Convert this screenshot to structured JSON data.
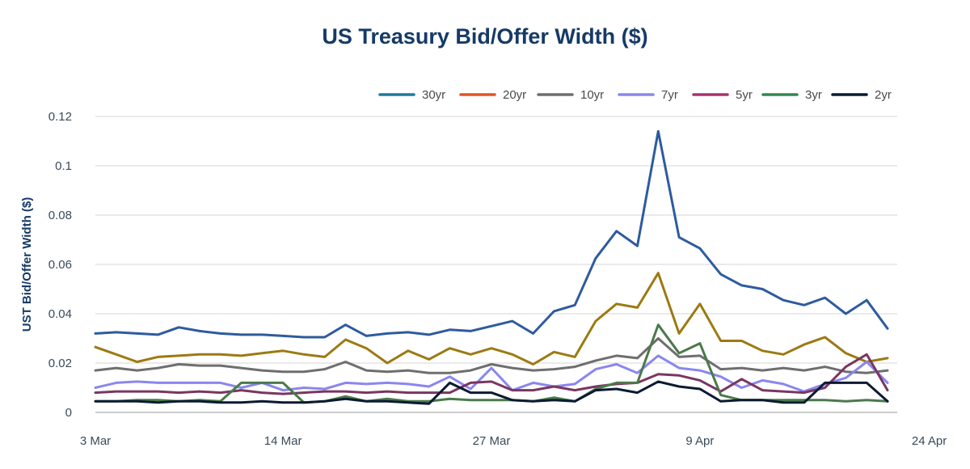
{
  "chart_data": {
    "type": "line",
    "title": "US Treasury Bid/Offer Width ($)",
    "ylabel": "UST Bid/Offer Width ($)",
    "xlabel": "",
    "ylim": [
      0,
      0.12
    ],
    "y_ticks": [
      "0",
      "0.02",
      "0.04",
      "0.06",
      "0.08",
      "0.1",
      "0.12"
    ],
    "y_tick_values": [
      0,
      0.02,
      0.04,
      0.06,
      0.08,
      0.1,
      0.12
    ],
    "x_tick_labels": [
      "3 Mar",
      "14 Mar",
      "27 Mar",
      "9 Apr",
      "24 Apr"
    ],
    "x_tick_indices": [
      0,
      9,
      19,
      29,
      40
    ],
    "grid": true,
    "legend_position": "top",
    "series": [
      {
        "name": "30yr",
        "color": "#1a7a9e",
        "line_color": "#2e5b9e",
        "values": [
          0.032,
          0.0325,
          0.032,
          0.0315,
          0.0345,
          0.033,
          0.032,
          0.0315,
          0.0315,
          0.031,
          0.0305,
          0.0305,
          0.0355,
          0.031,
          0.032,
          0.0325,
          0.0315,
          0.0335,
          0.033,
          0.035,
          0.037,
          0.032,
          0.041,
          0.0435,
          0.0625,
          0.0735,
          0.0675,
          0.114,
          0.071,
          0.0665,
          0.056,
          0.0515,
          0.05,
          0.0455,
          0.0435,
          0.0465,
          0.04,
          0.0455,
          0.034
        ]
      },
      {
        "name": "20yr",
        "color": "#e0561f",
        "line_color": "#9c7a12",
        "values": [
          0.0265,
          0.0235,
          0.0205,
          0.0225,
          0.023,
          0.0235,
          0.0235,
          0.023,
          0.024,
          0.025,
          0.0235,
          0.0225,
          0.0295,
          0.026,
          0.02,
          0.025,
          0.0215,
          0.026,
          0.0235,
          0.026,
          0.0235,
          0.0195,
          0.0245,
          0.0225,
          0.037,
          0.044,
          0.0425,
          0.0565,
          0.032,
          0.044,
          0.029,
          0.029,
          0.025,
          0.0235,
          0.0275,
          0.0305,
          0.024,
          0.0205,
          0.022
        ]
      },
      {
        "name": "10yr",
        "color": "#6e6e6e",
        "line_color": "#6e6e6e",
        "values": [
          0.017,
          0.018,
          0.017,
          0.018,
          0.0195,
          0.019,
          0.019,
          0.018,
          0.017,
          0.0165,
          0.0165,
          0.0175,
          0.0205,
          0.017,
          0.0165,
          0.017,
          0.016,
          0.016,
          0.017,
          0.0195,
          0.018,
          0.017,
          0.0175,
          0.0185,
          0.021,
          0.023,
          0.022,
          0.03,
          0.0225,
          0.023,
          0.0175,
          0.018,
          0.017,
          0.018,
          0.017,
          0.0185,
          0.0165,
          0.016,
          0.017
        ]
      },
      {
        "name": "7yr",
        "color": "#8a86ee",
        "line_color": "#8a86ee",
        "values": [
          0.01,
          0.012,
          0.0125,
          0.012,
          0.012,
          0.012,
          0.012,
          0.01,
          0.012,
          0.009,
          0.01,
          0.0095,
          0.012,
          0.0115,
          0.012,
          0.0115,
          0.0105,
          0.0145,
          0.0095,
          0.018,
          0.009,
          0.012,
          0.0105,
          0.0115,
          0.0175,
          0.0195,
          0.016,
          0.023,
          0.018,
          0.017,
          0.0145,
          0.01,
          0.013,
          0.0115,
          0.0085,
          0.0115,
          0.014,
          0.0205,
          0.012
        ]
      },
      {
        "name": "5yr",
        "color": "#a8336e",
        "line_color": "#7a3660",
        "values": [
          0.008,
          0.0085,
          0.0085,
          0.0085,
          0.008,
          0.0085,
          0.008,
          0.009,
          0.008,
          0.0075,
          0.008,
          0.0085,
          0.0085,
          0.008,
          0.0085,
          0.008,
          0.008,
          0.008,
          0.012,
          0.0125,
          0.009,
          0.009,
          0.0105,
          0.009,
          0.0105,
          0.0115,
          0.012,
          0.0155,
          0.015,
          0.013,
          0.0085,
          0.0135,
          0.009,
          0.0085,
          0.008,
          0.01,
          0.0185,
          0.0235,
          0.009
        ]
      },
      {
        "name": "3yr",
        "color": "#2e8a4e",
        "line_color": "#4a7a4a",
        "values": [
          0.0045,
          0.0045,
          0.005,
          0.005,
          0.0045,
          0.005,
          0.0045,
          0.012,
          0.012,
          0.012,
          0.004,
          0.0045,
          0.0065,
          0.0045,
          0.0055,
          0.0045,
          0.0045,
          0.0055,
          0.005,
          0.005,
          0.005,
          0.0045,
          0.006,
          0.0045,
          0.0095,
          0.012,
          0.012,
          0.0355,
          0.024,
          0.028,
          0.007,
          0.005,
          0.005,
          0.005,
          0.005,
          0.005,
          0.0045,
          0.005,
          0.0045
        ]
      },
      {
        "name": "2yr",
        "color": "#0b1a33",
        "line_color": "#0b1a33",
        "values": [
          0.0045,
          0.0045,
          0.0045,
          0.004,
          0.0045,
          0.0045,
          0.004,
          0.004,
          0.0045,
          0.004,
          0.004,
          0.0045,
          0.0055,
          0.0045,
          0.0045,
          0.004,
          0.0035,
          0.012,
          0.008,
          0.008,
          0.005,
          0.0045,
          0.005,
          0.0045,
          0.009,
          0.0095,
          0.008,
          0.0125,
          0.0105,
          0.0095,
          0.0045,
          0.005,
          0.005,
          0.004,
          0.004,
          0.012,
          0.012,
          0.012,
          0.0045
        ]
      }
    ]
  }
}
